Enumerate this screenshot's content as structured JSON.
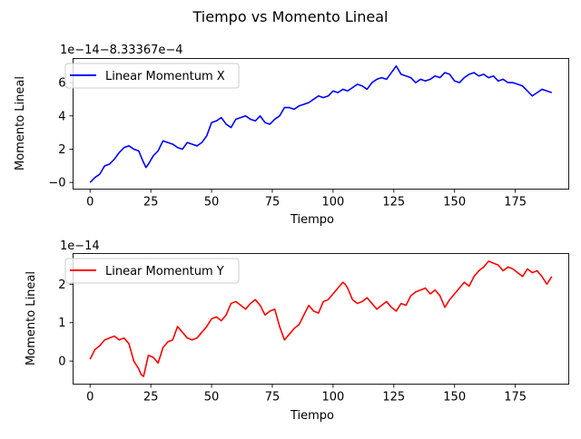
{
  "figure": {
    "title": "Tiempo vs Momento Lineal"
  },
  "chart_data": [
    {
      "type": "line",
      "title": "",
      "xlabel": "Tiempo",
      "ylabel": "Momento Lineal",
      "offset_text": "1e−14−8.33367e−4",
      "xlim": [
        -7,
        197
      ],
      "ylim": [
        -0.4,
        7.45
      ],
      "xticks": [
        0,
        25,
        50,
        75,
        100,
        125,
        150,
        175
      ],
      "yticks": [
        0,
        2,
        4,
        6
      ],
      "ytick_labels": [
        "−0",
        "2",
        "4",
        "6"
      ],
      "legend_position": "upper-left",
      "grid": false,
      "series": [
        {
          "name": "Linear Momentum X",
          "color": "#0000ff",
          "x": [
            0,
            2,
            4,
            6,
            8,
            10,
            12,
            14,
            16,
            18,
            20,
            22,
            23,
            24,
            26,
            28,
            30,
            32,
            34,
            36,
            38,
            40,
            42,
            44,
            46,
            48,
            50,
            52,
            54,
            56,
            58,
            60,
            62,
            64,
            66,
            68,
            70,
            72,
            74,
            76,
            78,
            80,
            82,
            84,
            86,
            88,
            90,
            92,
            94,
            96,
            98,
            100,
            102,
            104,
            106,
            108,
            110,
            112,
            114,
            116,
            118,
            120,
            122,
            124,
            125,
            126,
            128,
            130,
            132,
            134,
            136,
            138,
            140,
            142,
            144,
            146,
            148,
            150,
            152,
            154,
            156,
            158,
            160,
            162,
            164,
            166,
            168,
            170,
            172,
            174,
            176,
            178,
            180,
            182,
            184,
            186,
            188,
            190
          ],
          "y": [
            0,
            0.3,
            0.5,
            1.0,
            1.1,
            1.4,
            1.8,
            2.1,
            2.2,
            2.0,
            1.9,
            1.2,
            0.9,
            1.1,
            1.6,
            1.9,
            2.5,
            2.4,
            2.3,
            2.1,
            2.0,
            2.4,
            2.3,
            2.2,
            2.4,
            2.8,
            3.6,
            3.7,
            3.9,
            3.5,
            3.3,
            3.8,
            3.9,
            4.0,
            3.8,
            3.7,
            4.0,
            3.6,
            3.5,
            3.8,
            4.0,
            4.5,
            4.5,
            4.4,
            4.6,
            4.7,
            4.8,
            5.0,
            5.2,
            5.1,
            5.2,
            5.5,
            5.4,
            5.6,
            5.5,
            5.7,
            5.9,
            5.8,
            5.6,
            6.0,
            6.2,
            6.3,
            6.2,
            6.6,
            6.8,
            7.0,
            6.5,
            6.4,
            6.3,
            6.0,
            6.2,
            6.1,
            6.2,
            6.4,
            6.3,
            6.6,
            6.5,
            6.1,
            6.0,
            6.3,
            6.5,
            6.6,
            6.4,
            6.5,
            6.3,
            6.4,
            6.1,
            6.2,
            6.0,
            6.0,
            5.9,
            5.8,
            5.5,
            5.2,
            5.4,
            5.6,
            5.5,
            5.4
          ]
        }
      ]
    },
    {
      "type": "line",
      "title": "",
      "xlabel": "Tiempo",
      "ylabel": "Momento Lineal",
      "offset_text": "1e−14",
      "xlim": [
        -7,
        197
      ],
      "ylim": [
        -0.6,
        2.8
      ],
      "xticks": [
        0,
        25,
        50,
        75,
        100,
        125,
        150,
        175
      ],
      "yticks": [
        0,
        1,
        2
      ],
      "ytick_labels": [
        "0",
        "1",
        "2"
      ],
      "legend_position": "upper-left",
      "grid": false,
      "series": [
        {
          "name": "Linear Momentum Y",
          "color": "#ff0000",
          "x": [
            0,
            2,
            4,
            6,
            8,
            10,
            12,
            14,
            16,
            18,
            20,
            21,
            22,
            24,
            26,
            28,
            30,
            32,
            34,
            36,
            38,
            40,
            42,
            44,
            46,
            48,
            50,
            52,
            54,
            56,
            58,
            60,
            62,
            64,
            66,
            68,
            70,
            72,
            74,
            76,
            78,
            80,
            82,
            84,
            86,
            88,
            90,
            92,
            94,
            96,
            98,
            100,
            102,
            104,
            105,
            106,
            108,
            110,
            112,
            114,
            116,
            118,
            120,
            122,
            124,
            126,
            128,
            130,
            132,
            134,
            136,
            138,
            140,
            142,
            144,
            146,
            148,
            150,
            152,
            154,
            156,
            158,
            160,
            162,
            164,
            166,
            168,
            170,
            172,
            174,
            176,
            178,
            180,
            182,
            184,
            186,
            188,
            190
          ],
          "y": [
            0.05,
            0.3,
            0.4,
            0.55,
            0.6,
            0.65,
            0.55,
            0.6,
            0.45,
            0.0,
            -0.2,
            -0.35,
            -0.4,
            0.15,
            0.1,
            -0.05,
            0.35,
            0.5,
            0.55,
            0.9,
            0.75,
            0.6,
            0.55,
            0.6,
            0.75,
            0.9,
            1.1,
            1.15,
            1.05,
            1.2,
            1.5,
            1.55,
            1.45,
            1.35,
            1.5,
            1.6,
            1.45,
            1.2,
            1.3,
            1.35,
            0.9,
            0.55,
            0.7,
            0.85,
            0.95,
            1.2,
            1.45,
            1.3,
            1.25,
            1.55,
            1.6,
            1.75,
            1.9,
            2.05,
            2.0,
            1.9,
            1.6,
            1.5,
            1.55,
            1.65,
            1.5,
            1.35,
            1.45,
            1.55,
            1.4,
            1.3,
            1.5,
            1.45,
            1.7,
            1.8,
            1.85,
            1.9,
            1.75,
            1.85,
            1.7,
            1.4,
            1.6,
            1.75,
            1.9,
            2.05,
            1.95,
            2.2,
            2.35,
            2.45,
            2.6,
            2.55,
            2.5,
            2.35,
            2.45,
            2.4,
            2.3,
            2.2,
            2.4,
            2.3,
            2.35,
            2.2,
            2.0,
            2.2
          ]
        }
      ]
    }
  ]
}
